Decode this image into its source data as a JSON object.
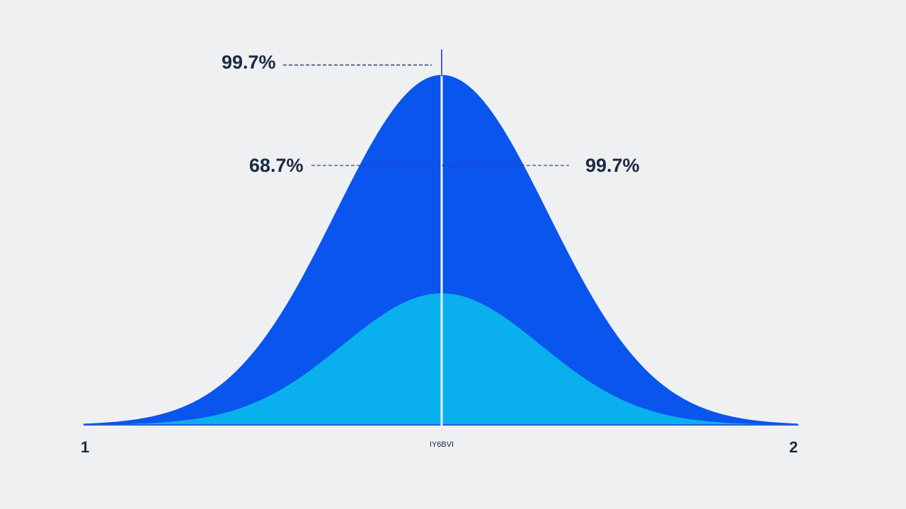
{
  "labels": {
    "top_left": "99.7%",
    "middle_left": "68.7%",
    "middle_right": "99.7%",
    "axis_start": "1",
    "axis_end": "2",
    "axis_center": "IY6BVI"
  }
}
